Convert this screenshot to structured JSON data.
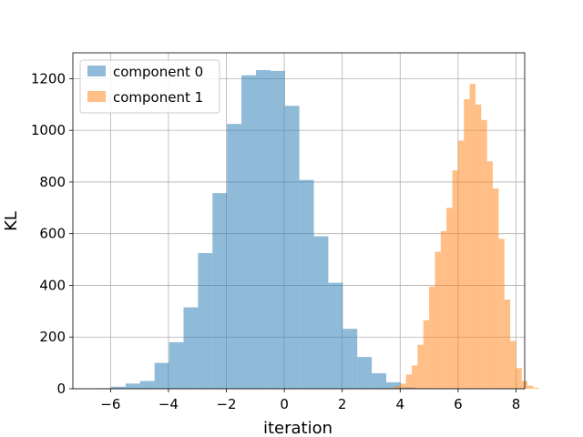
{
  "chart_data": {
    "type": "histogram",
    "xlabel": "iteration",
    "ylabel": "KL",
    "xlim": [
      -7.3,
      8.3
    ],
    "ylim": [
      0,
      1300
    ],
    "xticks": [
      -6,
      -4,
      -2,
      0,
      2,
      4,
      6,
      8
    ],
    "xtick_labels": [
      "−6",
      "−4",
      "−2",
      "0",
      "2",
      "4",
      "6",
      "8"
    ],
    "yticks": [
      0,
      200,
      400,
      600,
      800,
      1000,
      1200
    ],
    "ytick_labels": [
      "0",
      "200",
      "400",
      "600",
      "800",
      "1000",
      "1200"
    ],
    "grid": true,
    "legend_position": "top-left",
    "series": [
      {
        "name": "component 0",
        "color": "#1f77b4",
        "alpha": 0.5,
        "bin_start": -6.48,
        "bin_width": 0.5,
        "values": [
          2,
          8,
          20,
          30,
          100,
          180,
          315,
          525,
          757,
          1025,
          1213,
          1233,
          1230,
          1095,
          808,
          590,
          410,
          232,
          123,
          60,
          25,
          5,
          2
        ]
      },
      {
        "name": "component 1",
        "color": "#ff7f0e",
        "alpha": 0.5,
        "bin_start": 3.6,
        "bin_width": 0.2,
        "values": [
          3,
          10,
          20,
          55,
          90,
          170,
          265,
          395,
          530,
          610,
          700,
          845,
          960,
          1120,
          1180,
          1100,
          1040,
          880,
          775,
          580,
          345,
          185,
          80,
          30,
          12,
          4
        ]
      }
    ]
  }
}
